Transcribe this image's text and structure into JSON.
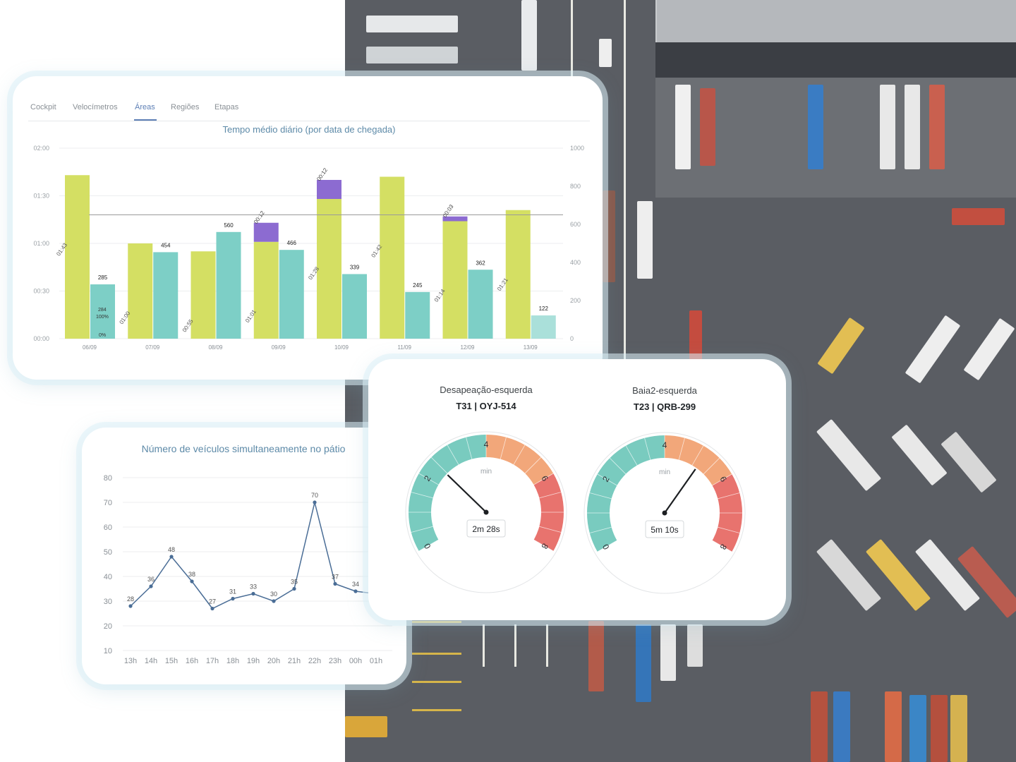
{
  "tabs": [
    {
      "label": "Cockpit"
    },
    {
      "label": "Velocímetros"
    },
    {
      "label": "Áreas",
      "active": true
    },
    {
      "label": "Regiões"
    },
    {
      "label": "Etapas"
    }
  ],
  "bar_chart": {
    "title": "Tempo médio diário (por data de chegada)"
  },
  "chart_data": [
    {
      "type": "bar",
      "title": "Tempo médio diário (por data de chegada)",
      "categories": [
        "06/09",
        "07/09",
        "08/09",
        "09/09",
        "10/09",
        "11/09",
        "12/09",
        "13/09"
      ],
      "y_left_ticks": [
        "00:00",
        "00:30",
        "01:00",
        "01:30",
        "02:00"
      ],
      "y_left_range_minutes": [
        0,
        120
      ],
      "y_right_ticks": [
        "0",
        "200",
        "400",
        "600",
        "800",
        "1000"
      ],
      "y_right_range": [
        0,
        1000
      ],
      "reference_line_minutes": 78,
      "series": [
        {
          "name": "",
          "axis": "left",
          "unit": "minutes",
          "values": [
            103,
            60,
            55,
            61,
            88,
            102,
            74,
            81
          ],
          "labels": [
            "01:43",
            "01:00",
            "00:55",
            "01:01",
            "01:28",
            "01:42",
            "01:14",
            "01:21"
          ],
          "color": "#d4df63"
        },
        {
          "name": "",
          "axis": "left",
          "unit": "minutes",
          "stacked": true,
          "values": [
            0,
            0,
            0,
            12,
            12,
            0,
            3,
            0
          ],
          "labels": [
            "",
            "",
            "",
            "00:12",
            "00:12",
            "",
            "00:03",
            ""
          ],
          "color": "#8c6bd1"
        },
        {
          "name": "",
          "axis": "right",
          "values": [
            285,
            454,
            560,
            466,
            339,
            245,
            362,
            122
          ],
          "labels": [
            "285",
            "454",
            "560",
            "466",
            "339",
            "245",
            "362",
            "122"
          ],
          "color": "#7dcfc6"
        }
      ],
      "annotations": [
        "284",
        "100%",
        "0%"
      ]
    },
    {
      "type": "line",
      "title": "Número de veículos simultaneamente no pátio",
      "x": [
        "13h",
        "14h",
        "15h",
        "16h",
        "17h",
        "18h",
        "19h",
        "20h",
        "21h",
        "22h",
        "23h",
        "00h",
        "01h"
      ],
      "y": [
        28,
        36,
        48,
        38,
        27,
        31,
        33,
        30,
        35,
        70,
        37,
        34,
        33
      ],
      "point_labels": [
        "28",
        "36",
        "48",
        "38",
        "27",
        "31",
        "33",
        "30",
        "35",
        "70",
        "37",
        "34",
        ""
      ],
      "y_ticks": [
        "10",
        "20",
        "30",
        "40",
        "50",
        "60",
        "70",
        "80"
      ],
      "ylim": [
        10,
        80
      ],
      "color": "#4a6d96"
    }
  ],
  "gauges": [
    {
      "title": "Desapeação-esquerda",
      "subtitle": "T31 | OYJ-514",
      "value_label": "2m 28s",
      "value_minutes": 2.47,
      "unit": "min",
      "ticks": [
        "0",
        "2",
        "4",
        "6",
        "8"
      ]
    },
    {
      "title": "Baia2-esquerda",
      "subtitle": "T23 | QRB-299",
      "value_label": "5m 10s",
      "value_minutes": 5.17,
      "unit": "min",
      "ticks": [
        "0",
        "2",
        "4",
        "6",
        "8"
      ]
    }
  ],
  "colors": {
    "accent": "#5d7fb5",
    "bar_a": "#d4df63",
    "bar_b": "#7dcfc6",
    "bar_c": "#8c6bd1",
    "gauge_green": "#79cbbf",
    "gauge_orange": "#f2a77a",
    "gauge_red": "#e8736e"
  }
}
